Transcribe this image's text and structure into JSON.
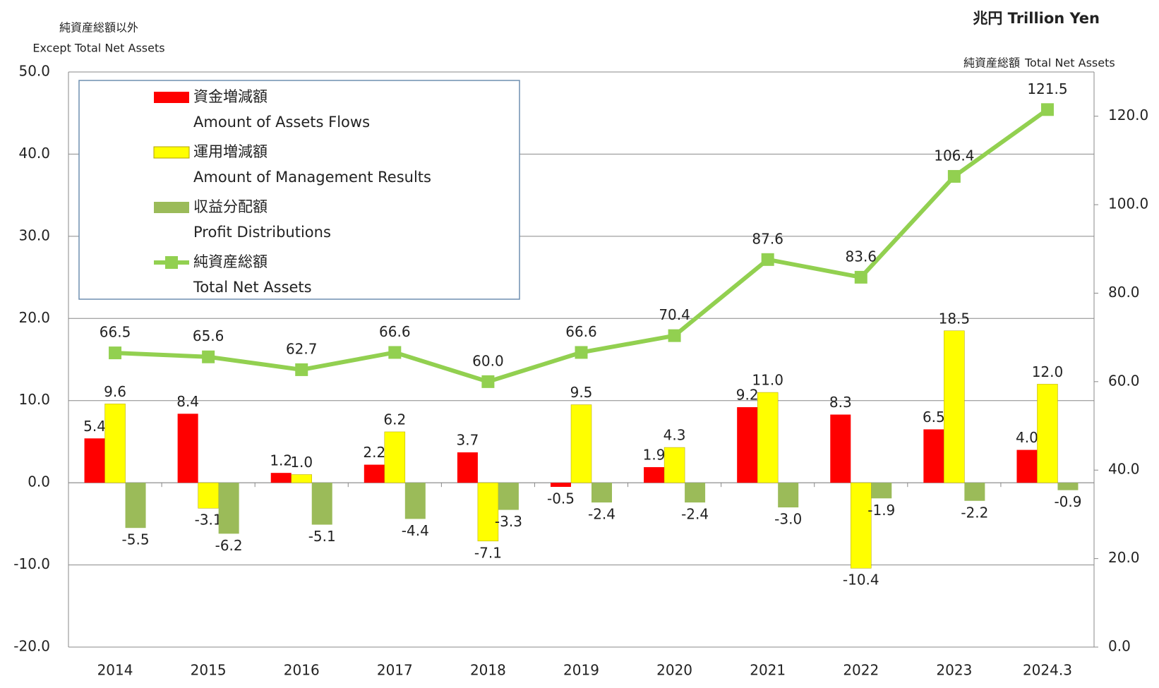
{
  "chart_data": {
    "type": "bar_line",
    "unit": "兆円 Trillion Yen",
    "ylabel": "純資産総額以外",
    "ylabel_en": "Except Total Net Assets",
    "y2label": "純資産総額",
    "y2label_en": "Total Net Assets",
    "categories": [
      "2014",
      "2015",
      "2016",
      "2017",
      "2018",
      "2019",
      "2020",
      "2021",
      "2022",
      "2023",
      "2024.3"
    ],
    "ylim": [
      -20,
      50
    ],
    "yticks": [
      {
        "value": -20,
        "label": "-20.0"
      },
      {
        "value": -10,
        "label": "-10.0"
      },
      {
        "value": 0,
        "label": "0.0"
      },
      {
        "value": 10,
        "label": "10.0"
      },
      {
        "value": 20,
        "label": "20.0"
      },
      {
        "value": 30,
        "label": "30.0"
      },
      {
        "value": 40,
        "label": "40.0"
      },
      {
        "value": 50,
        "label": "50.0"
      }
    ],
    "y2lim": [
      0,
      130
    ],
    "y2ticks": [
      {
        "value": 0,
        "label": "0.0"
      },
      {
        "value": 20,
        "label": "20.0"
      },
      {
        "value": 40,
        "label": "40.0"
      },
      {
        "value": 60,
        "label": "60.0"
      },
      {
        "value": 80,
        "label": "80.0"
      },
      {
        "value": 100,
        "label": "100.0"
      },
      {
        "value": 120,
        "label": "120.0"
      }
    ],
    "grid": true,
    "series": [
      {
        "name": "資金増減額",
        "name_en": "Amount of Assets Flows",
        "kind": "bar",
        "color": "#ff0000",
        "values": [
          5.4,
          8.4,
          1.2,
          2.2,
          3.7,
          -0.5,
          1.9,
          9.2,
          8.3,
          6.5,
          4.0
        ],
        "value_labels": [
          "5.4",
          "8.4",
          "1.2",
          "2.2",
          "3.7",
          "-0.5",
          "1.9",
          "9.2",
          "8.3",
          "6.5",
          "4.0"
        ]
      },
      {
        "name": "運用増減額",
        "name_en": "Amount of Management Results",
        "kind": "bar",
        "color": "#ffff00",
        "values": [
          9.6,
          -3.1,
          1.0,
          6.2,
          -7.1,
          9.5,
          4.3,
          11.0,
          -10.4,
          18.5,
          12.0
        ],
        "value_labels": [
          "9.6",
          "-3.1",
          "1.0",
          "6.2",
          "-7.1",
          "9.5",
          "4.3",
          "11.0",
          "-10.4",
          "18.5",
          "12.0"
        ]
      },
      {
        "name": "収益分配額",
        "name_en": "Profit Distributions",
        "kind": "bar",
        "color": "#9bbb59",
        "values": [
          -5.5,
          -6.2,
          -5.1,
          -4.4,
          -3.3,
          -2.4,
          -2.4,
          -3.0,
          -1.9,
          -2.2,
          -0.9
        ],
        "value_labels": [
          "-5.5",
          "-6.2",
          "-5.1",
          "-4.4",
          "-3.3",
          "-2.4",
          "-2.4",
          "-3.0",
          "-1.9",
          "-2.2",
          "-0.9"
        ]
      },
      {
        "name": "純資産総額",
        "name_en": "Total Net Assets",
        "kind": "line",
        "axis": "y2",
        "color": "#92d050",
        "values": [
          66.5,
          65.6,
          62.7,
          66.6,
          60.0,
          66.6,
          70.4,
          87.6,
          83.6,
          106.4,
          121.5
        ],
        "value_labels": [
          "66.5",
          "65.6",
          "62.7",
          "66.6",
          "60.0",
          "66.6",
          "70.4",
          "87.6",
          "83.6",
          "106.4",
          "121.5"
        ]
      }
    ]
  }
}
